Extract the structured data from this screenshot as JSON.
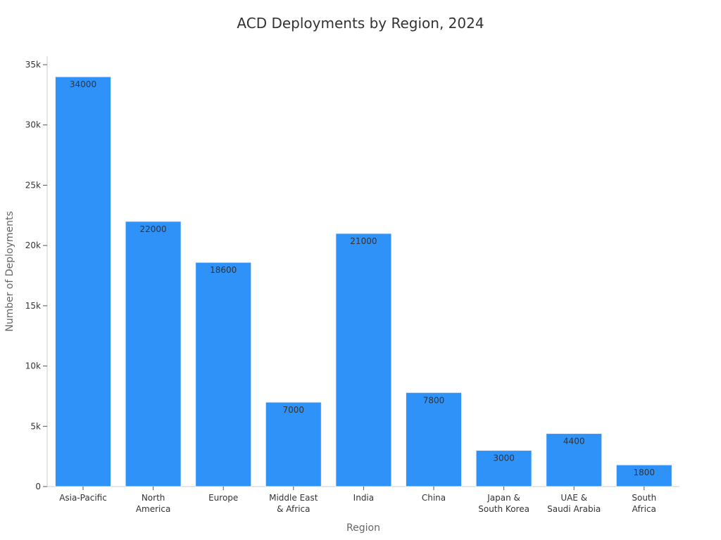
{
  "chart_data": {
    "type": "bar",
    "title": "ACD Deployments by Region, 2024",
    "xlabel": "Region",
    "ylabel": "Number of Deployments",
    "categories": [
      [
        "Asia-Pacific"
      ],
      [
        "North",
        "America"
      ],
      [
        "Europe"
      ],
      [
        "Middle East",
        "& Africa"
      ],
      [
        "India"
      ],
      [
        "China"
      ],
      [
        "Japan &",
        "South Korea"
      ],
      [
        "UAE &",
        "Saudi Arabia"
      ],
      [
        "South",
        "Africa"
      ]
    ],
    "values": [
      34000,
      22000,
      18600,
      7000,
      21000,
      7800,
      3000,
      4400,
      1800
    ],
    "data_labels": [
      "34000",
      "22000",
      "18600",
      "7000",
      "21000",
      "7800",
      "3000",
      "4400",
      "1800"
    ],
    "ylim": [
      0,
      35700
    ],
    "yticks": [
      0,
      5000,
      10000,
      15000,
      20000,
      25000,
      30000,
      35000
    ],
    "ytick_labels": [
      "0",
      "5k",
      "10k",
      "15k",
      "20k",
      "25k",
      "30k",
      "35k"
    ],
    "bar_color": "#2f92f9",
    "grid": false,
    "legend": "none"
  }
}
